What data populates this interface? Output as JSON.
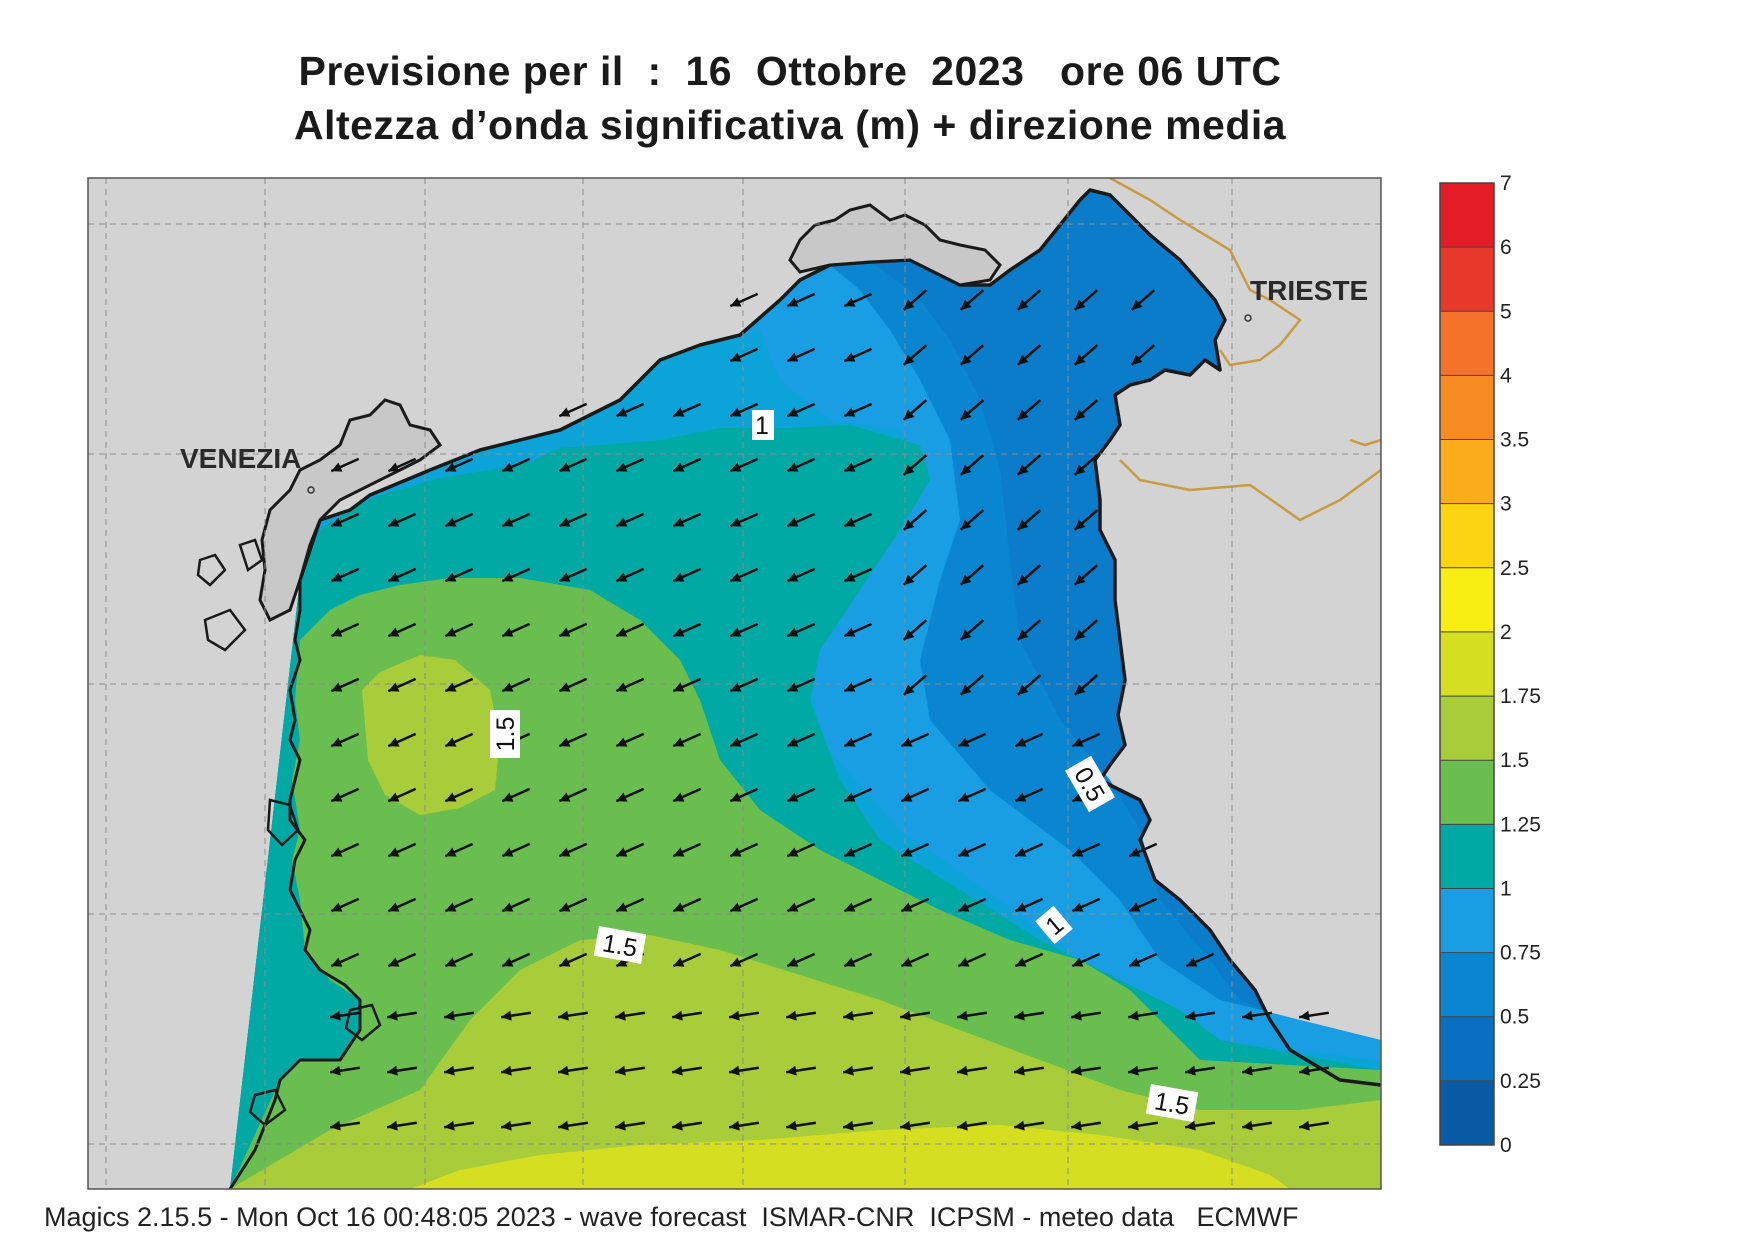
{
  "title_line1": "Previsione per il  :  16  Ottobre  2023   ore 06 UTC",
  "title_line2": "Altezza d’onda significativa (m) + direzione media",
  "footer": "Magics 2.15.5 - Mon Oct 16 00:48:05 2023 - wave forecast  ISMAR-CNR  ICPSM - meteo data   ECMWF",
  "cities": {
    "venezia": "VENEZIA",
    "trieste": "TRIESTE"
  },
  "contour_labels": [
    "1",
    "1.5",
    "0.5",
    "1",
    "1.5",
    "1.5"
  ],
  "colorbar": {
    "ticks": [
      "0",
      "0.25",
      "0.5",
      "0.75",
      "1",
      "1.25",
      "1.5",
      "1.75",
      "2",
      "2.5",
      "3",
      "3.5",
      "4",
      "5",
      "6",
      "7"
    ],
    "colors": [
      "#0a5aa6",
      "#0a6fc0",
      "#0a86d0",
      "#1a9ee3",
      "#00a9a3",
      "#6abd4f",
      "#a9cc3a",
      "#d6de22",
      "#f8ee14",
      "#fcd411",
      "#faac1c",
      "#f88a22",
      "#f5722a",
      "#e83a2c",
      "#e41c28",
      "#e3196b"
    ]
  },
  "colors": {
    "land": "#d3d3d3",
    "coast": "#1a1a1a",
    "border": "#c99a42",
    "grid": "#8c8c8c",
    "arrow": "#111111"
  },
  "wave_direction": "towards south-west"
}
